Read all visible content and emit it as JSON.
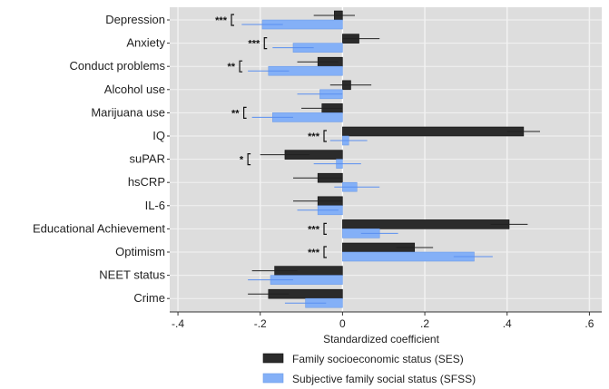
{
  "chart_data": {
    "type": "bar",
    "orientation": "horizontal",
    "title": "",
    "xlabel": "Standardized coefficient",
    "ylabel": "",
    "xlim": [
      -0.42,
      0.63
    ],
    "xticks": [
      -0.4,
      -0.2,
      0,
      0.2,
      0.4,
      0.6
    ],
    "xtick_labels": [
      "-.4",
      "-.2",
      "0",
      ".2",
      ".4",
      ".6"
    ],
    "grid": true,
    "legend_position": "bottom",
    "categories": [
      "Depression",
      "Anxiety",
      "Conduct problems",
      "Alcohol use",
      "Marijuana use",
      "IQ",
      "suPAR",
      "hsCRP",
      "IL-6",
      "Educational Achievement",
      "Optimism",
      "NEET status",
      "Crime"
    ],
    "series": [
      {
        "name": "Family socioeconomic status (SES)",
        "color": "#2b2b2b",
        "values": [
          -0.02,
          0.04,
          -0.06,
          0.02,
          -0.05,
          0.44,
          -0.14,
          -0.06,
          -0.06,
          0.405,
          0.175,
          -0.165,
          -0.18
        ],
        "ci_low": [
          -0.07,
          -0.0,
          -0.11,
          -0.03,
          -0.1,
          0.4,
          -0.2,
          -0.12,
          -0.12,
          0.36,
          0.13,
          -0.22,
          -0.23
        ],
        "ci_high": [
          0.03,
          0.09,
          -0.01,
          0.07,
          0.0,
          0.48,
          -0.08,
          0.0,
          0.0,
          0.45,
          0.22,
          -0.11,
          -0.13
        ]
      },
      {
        "name": "Subjective family social status (SFSS)",
        "color": "#84b0f7",
        "values": [
          -0.195,
          -0.12,
          -0.18,
          -0.055,
          -0.17,
          0.015,
          -0.015,
          0.035,
          -0.06,
          0.09,
          0.32,
          -0.175,
          -0.09
        ],
        "ci_low": [
          -0.245,
          -0.17,
          -0.23,
          -0.11,
          -0.22,
          -0.03,
          -0.07,
          -0.02,
          -0.11,
          0.045,
          0.27,
          -0.23,
          -0.14
        ],
        "ci_high": [
          -0.145,
          -0.07,
          -0.13,
          0.0,
          -0.12,
          0.06,
          0.045,
          0.09,
          -0.01,
          0.135,
          0.365,
          -0.12,
          -0.04
        ]
      }
    ],
    "significance": [
      {
        "category": "Depression",
        "label": "***",
        "x": -0.27
      },
      {
        "category": "Anxiety",
        "label": "***",
        "x": -0.19
      },
      {
        "category": "Conduct problems",
        "label": "**",
        "x": -0.25
      },
      {
        "category": "Marijuana use",
        "label": "**",
        "x": -0.24
      },
      {
        "category": "IQ",
        "label": "***",
        "x": -0.045
      },
      {
        "category": "suPAR",
        "label": "*",
        "x": -0.23
      },
      {
        "category": "Educational Achievement",
        "label": "***",
        "x": -0.045
      },
      {
        "category": "Optimism",
        "label": "***",
        "x": -0.045
      }
    ]
  }
}
